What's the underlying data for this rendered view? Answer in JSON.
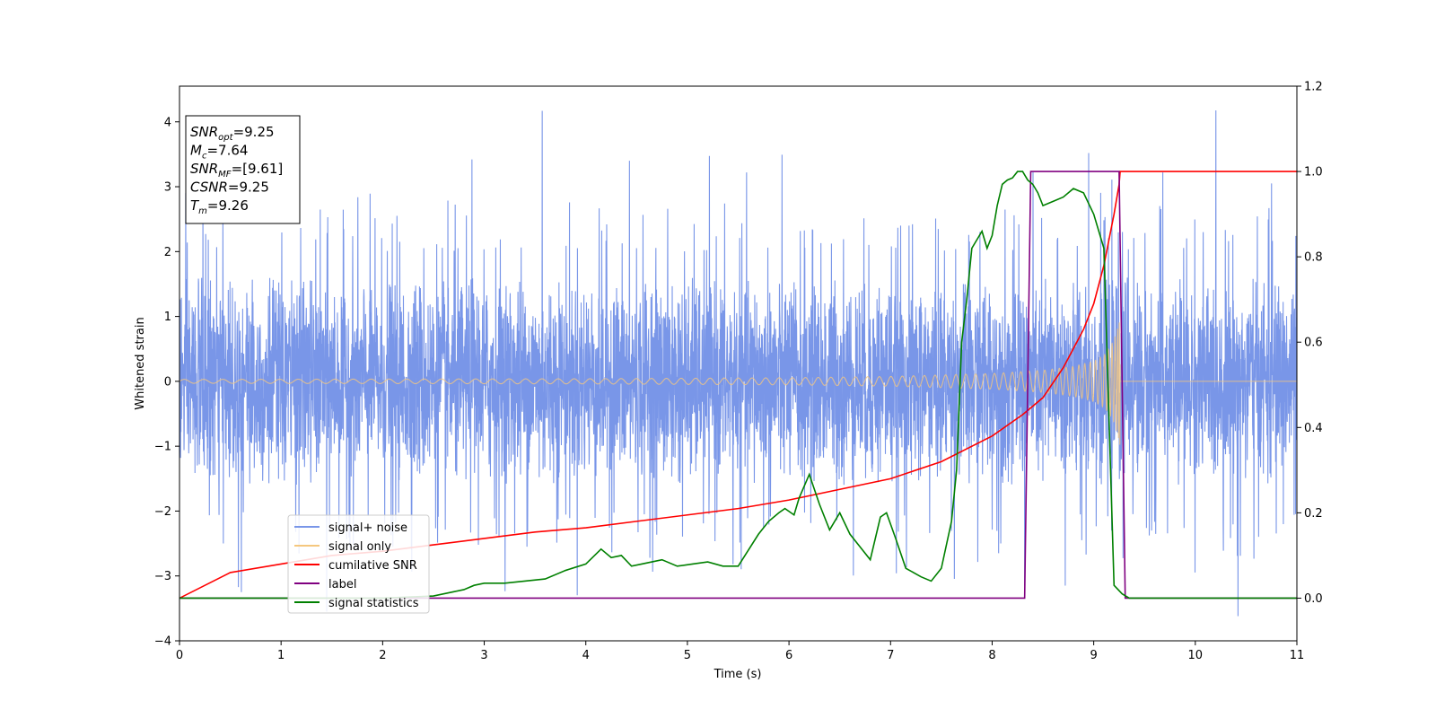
{
  "chart_data": {
    "type": "line",
    "title": "",
    "xlabel": "Time (s)",
    "ylabel": "Whitened strain",
    "xlim": [
      0,
      11
    ],
    "ylim": [
      -4,
      4.55
    ],
    "y2lim": [
      -0.1,
      1.2
    ],
    "x_ticks": [
      0,
      1,
      2,
      3,
      4,
      5,
      6,
      7,
      8,
      9,
      10,
      11
    ],
    "x_tick_labels": [
      "0",
      "1",
      "2",
      "3",
      "4",
      "5",
      "6",
      "7",
      "8",
      "9",
      "10",
      "11"
    ],
    "y_ticks": [
      -4,
      -3,
      -2,
      -1,
      0,
      1,
      2,
      3,
      4
    ],
    "y_tick_labels": [
      "−4",
      "−3",
      "−2",
      "−1",
      "0",
      "1",
      "2",
      "3",
      "4"
    ],
    "y2_ticks": [
      0.0,
      0.2,
      0.4,
      0.6,
      0.8,
      1.0,
      1.2
    ],
    "y2_tick_labels": [
      "0.0",
      "0.2",
      "0.4",
      "0.6",
      "0.8",
      "1.0",
      "1.2"
    ],
    "legend_position": "lower-left",
    "annotation": {
      "lines": [
        {
          "name": "SNR",
          "sub": "opt",
          "value": "=9.25"
        },
        {
          "name": "M",
          "sub": "c",
          "value": "=7.64"
        },
        {
          "name": "SNR",
          "sub": "MF",
          "value": "=[9.61]"
        },
        {
          "name": "CSNR",
          "sub": "",
          "value": "=9.25"
        },
        {
          "name": "T",
          "sub": "m",
          "value": "=9.26"
        }
      ]
    },
    "series": [
      {
        "name": "signal+ noise",
        "color": "#7996e8",
        "axis": "left",
        "note": "whitened noise, approx. unit variance",
        "spikes": [
          [
            0.61,
            -3.25
          ],
          [
            1.45,
            -3.55
          ],
          [
            2.88,
            3.42
          ],
          [
            3.57,
            4.17
          ],
          [
            4.43,
            3.4
          ],
          [
            5.45,
            -2.82
          ],
          [
            8.95,
            3.52
          ],
          [
            8.32,
            -3.15
          ],
          [
            8.72,
            -3.15
          ],
          [
            10.42,
            -3.62
          ],
          [
            10.75,
            3.05
          ],
          [
            9.68,
            3.22
          ],
          [
            0.23,
            3.02
          ],
          [
            2.1,
            -2.55
          ]
        ]
      },
      {
        "name": "signal only",
        "color": "#f5c77e",
        "axis": "left",
        "amplitude_envelope": {
          "t": [
            0,
            4,
            6,
            7,
            8,
            8.5,
            8.8,
            9.0,
            9.1,
            9.15,
            9.2,
            9.24,
            9.26
          ],
          "a": [
            0.03,
            0.04,
            0.055,
            0.075,
            0.12,
            0.17,
            0.23,
            0.31,
            0.4,
            0.5,
            0.64,
            0.85,
            1.0
          ]
        },
        "end_time": 9.26
      },
      {
        "name": "cumilative SNR",
        "color": "#ff0000",
        "axis": "right",
        "x": [
          0,
          0.5,
          1,
          1.5,
          2,
          2.5,
          3,
          3.5,
          4,
          4.5,
          5,
          5.5,
          6,
          6.5,
          7,
          7.5,
          8,
          8.3,
          8.5,
          8.7,
          8.9,
          9.0,
          9.1,
          9.2,
          9.25,
          9.26,
          11
        ],
        "y": [
          0.0,
          0.06,
          0.08,
          0.1,
          0.11,
          0.125,
          0.14,
          0.155,
          0.165,
          0.18,
          0.195,
          0.21,
          0.23,
          0.255,
          0.28,
          0.32,
          0.38,
          0.43,
          0.47,
          0.54,
          0.63,
          0.69,
          0.78,
          0.9,
          0.97,
          1.0,
          1.0
        ]
      },
      {
        "name": "label",
        "color": "#800080",
        "axis": "right",
        "x": [
          0,
          8.32,
          8.38,
          9.25,
          9.31,
          11
        ],
        "y": [
          0,
          0,
          1,
          1,
          0,
          0
        ]
      },
      {
        "name": "signal statistics",
        "color": "#008000",
        "axis": "right",
        "x": [
          0,
          1,
          2,
          2.5,
          2.7,
          2.8,
          2.9,
          3.0,
          3.2,
          3.4,
          3.6,
          3.8,
          4.0,
          4.15,
          4.25,
          4.35,
          4.45,
          4.55,
          4.65,
          4.75,
          4.9,
          5.05,
          5.2,
          5.35,
          5.5,
          5.7,
          5.8,
          5.9,
          5.96,
          6.05,
          6.1,
          6.2,
          6.3,
          6.4,
          6.5,
          6.6,
          6.7,
          6.8,
          6.9,
          6.96,
          7.05,
          7.15,
          7.3,
          7.4,
          7.5,
          7.6,
          7.65,
          7.7,
          7.75,
          7.8,
          7.85,
          7.9,
          7.95,
          8.0,
          8.05,
          8.1,
          8.15,
          8.2,
          8.25,
          8.3,
          8.35,
          8.4,
          8.45,
          8.5,
          8.6,
          8.7,
          8.8,
          8.9,
          9.0,
          9.1,
          9.2,
          9.28,
          9.35,
          11
        ],
        "y": [
          0.0,
          0.0,
          0.0,
          0.005,
          0.015,
          0.02,
          0.03,
          0.035,
          0.035,
          0.04,
          0.045,
          0.065,
          0.08,
          0.115,
          0.095,
          0.1,
          0.075,
          0.08,
          0.085,
          0.09,
          0.075,
          0.08,
          0.085,
          0.075,
          0.075,
          0.15,
          0.18,
          0.2,
          0.21,
          0.195,
          0.235,
          0.29,
          0.22,
          0.16,
          0.2,
          0.15,
          0.12,
          0.09,
          0.19,
          0.2,
          0.14,
          0.07,
          0.05,
          0.04,
          0.07,
          0.18,
          0.3,
          0.6,
          0.7,
          0.82,
          0.84,
          0.86,
          0.82,
          0.85,
          0.92,
          0.97,
          0.98,
          0.985,
          1.0,
          1.0,
          0.98,
          0.97,
          0.95,
          0.92,
          0.93,
          0.94,
          0.96,
          0.95,
          0.9,
          0.82,
          0.03,
          0.01,
          0.0,
          0.0
        ]
      }
    ]
  }
}
